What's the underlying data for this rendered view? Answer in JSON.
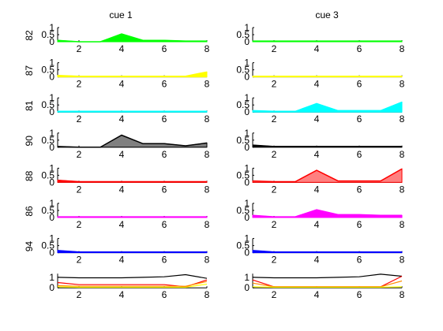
{
  "columns": [
    "cue 1",
    "cue 3"
  ],
  "row_labels": [
    "82",
    "87",
    "81",
    "90",
    "88",
    "86",
    "94",
    ""
  ],
  "chart_data": {
    "type": "area",
    "x": [
      1,
      2,
      3,
      4,
      5,
      6,
      7,
      8
    ],
    "xlim": [
      1,
      8
    ],
    "xticks": [
      2,
      4,
      6,
      8
    ],
    "ylim": [
      0,
      1
    ],
    "yticks": [
      "0",
      "0.5",
      "1"
    ],
    "grid": false,
    "panels": [
      {
        "row": "82",
        "column": "cue 1",
        "color": "#00ff00",
        "values": [
          0.1,
          0.0,
          0.0,
          0.55,
          0.1,
          0.1,
          0.05,
          0.05
        ]
      },
      {
        "row": "82",
        "column": "cue 3",
        "color": "#00ff00",
        "values": [
          0.05,
          0.05,
          0.05,
          0.05,
          0.05,
          0.05,
          0.05,
          0.05
        ]
      },
      {
        "row": "87",
        "column": "cue 1",
        "color": "#ffff00",
        "values": [
          0.1,
          0.05,
          0.05,
          0.05,
          0.05,
          0.05,
          0.05,
          0.35
        ]
      },
      {
        "row": "87",
        "column": "cue 3",
        "color": "#ffff00",
        "values": [
          0.05,
          0.05,
          0.05,
          0.05,
          0.05,
          0.05,
          0.05,
          0.05
        ]
      },
      {
        "row": "81",
        "column": "cue 1",
        "color": "#00ffff",
        "values": [
          0.05,
          0.05,
          0.05,
          0.05,
          0.05,
          0.05,
          0.05,
          0.05
        ]
      },
      {
        "row": "81",
        "column": "cue 3",
        "color": "#00ffff",
        "values": [
          0.1,
          0.05,
          0.05,
          0.6,
          0.1,
          0.1,
          0.1,
          0.7
        ]
      },
      {
        "row": "90",
        "column": "cue 1",
        "color": "#000000",
        "fill": "#808080",
        "values": [
          0.05,
          0.0,
          0.0,
          0.85,
          0.25,
          0.25,
          0.1,
          0.3
        ]
      },
      {
        "row": "90",
        "column": "cue 3",
        "color": "#000000",
        "values": [
          0.15,
          0.05,
          0.05,
          0.05,
          0.05,
          0.05,
          0.05,
          0.05
        ]
      },
      {
        "row": "88",
        "column": "cue 1",
        "color": "#ff0000",
        "values": [
          0.15,
          0.05,
          0.05,
          0.05,
          0.05,
          0.05,
          0.05,
          0.05
        ]
      },
      {
        "row": "88",
        "column": "cue 3",
        "color": "#ff0000",
        "fill": "#ff8080",
        "values": [
          0.1,
          0.05,
          0.05,
          0.85,
          0.1,
          0.1,
          0.1,
          0.95
        ]
      },
      {
        "row": "86",
        "column": "cue 1",
        "color": "#ff00ff",
        "values": [
          0.05,
          0.05,
          0.05,
          0.05,
          0.05,
          0.05,
          0.05,
          0.05
        ]
      },
      {
        "row": "86",
        "column": "cue 3",
        "color": "#ff00ff",
        "values": [
          0.15,
          0.05,
          0.05,
          0.55,
          0.2,
          0.2,
          0.15,
          0.15
        ]
      },
      {
        "row": "94",
        "column": "cue 1",
        "color": "#0000ff",
        "values": [
          0.15,
          0.05,
          0.05,
          0.05,
          0.05,
          0.05,
          0.05,
          0.05
        ]
      },
      {
        "row": "94",
        "column": "cue 3",
        "color": "#0000ff",
        "values": [
          0.15,
          0.05,
          0.05,
          0.05,
          0.05,
          0.05,
          0.05,
          0.05
        ]
      }
    ],
    "summary_panels": [
      {
        "column": "cue 1",
        "type": "line",
        "series": [
          {
            "color": "#000000",
            "values": [
              1.0,
              0.95,
              0.95,
              0.95,
              1.0,
              1.05,
              1.25,
              0.9
            ]
          },
          {
            "color": "#ff0000",
            "values": [
              0.5,
              0.3,
              0.3,
              0.3,
              0.3,
              0.3,
              0.1,
              0.75
            ]
          },
          {
            "color": "#ff8c00",
            "values": [
              0.2,
              0.15,
              0.15,
              0.15,
              0.15,
              0.15,
              0.15,
              0.6
            ]
          },
          {
            "color": "#ffff00",
            "values": [
              0.1,
              0.05,
              0.05,
              0.05,
              0.05,
              0.05,
              0.05,
              0.35
            ]
          }
        ]
      },
      {
        "column": "cue 3",
        "type": "line",
        "series": [
          {
            "color": "#000000",
            "values": [
              1.0,
              0.95,
              0.95,
              0.95,
              1.0,
              1.05,
              1.3,
              1.1
            ]
          },
          {
            "color": "#ff0000",
            "values": [
              0.75,
              0.1,
              0.1,
              0.1,
              0.1,
              0.1,
              0.1,
              1.1
            ]
          },
          {
            "color": "#ff8c00",
            "values": [
              0.45,
              0.1,
              0.1,
              0.1,
              0.1,
              0.1,
              0.1,
              0.65
            ]
          },
          {
            "color": "#ffff00",
            "values": [
              0.1,
              0.05,
              0.05,
              0.05,
              0.05,
              0.05,
              0.05,
              0.1
            ]
          }
        ]
      }
    ]
  }
}
